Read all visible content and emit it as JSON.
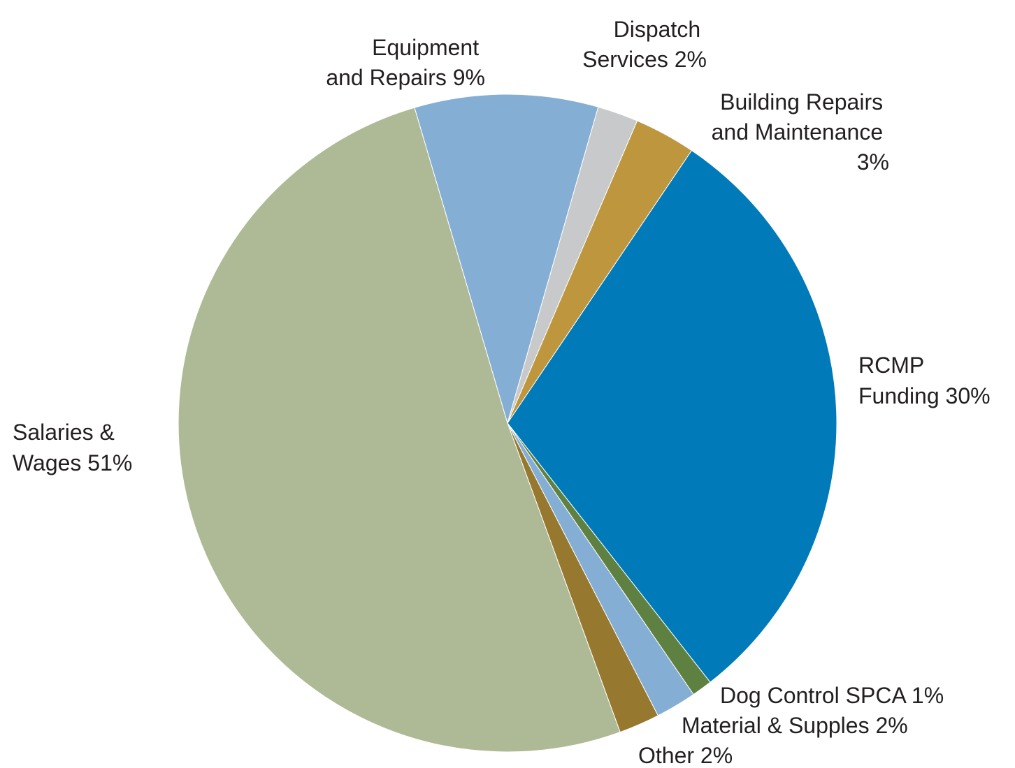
{
  "chart_data": {
    "type": "pie",
    "title": "",
    "slices": [
      {
        "name": "RCMP Funding",
        "value": 30,
        "color": "#007ab8",
        "label_lines": [
          "RCMP",
          "Funding 30%"
        ]
      },
      {
        "name": "Dog Control SPCA",
        "value": 1,
        "color": "#5e8040",
        "label_lines": [
          "Dog Control SPCA 1%"
        ]
      },
      {
        "name": "Material & Supples",
        "value": 2,
        "color": "#84aed4",
        "label_lines": [
          "Material & Supples 2%"
        ]
      },
      {
        "name": "Other",
        "value": 2,
        "color": "#96782e",
        "label_lines": [
          "Other 2%"
        ]
      },
      {
        "name": "Salaries & Wages",
        "value": 51,
        "color": "#adba95",
        "label_lines": [
          "Salaries &",
          "Wages 51%"
        ]
      },
      {
        "name": "Equipment and Repairs",
        "value": 9,
        "color": "#84aed4",
        "label_lines": [
          "Equipment",
          "and Repairs 9%"
        ]
      },
      {
        "name": "Dispatch Services",
        "value": 2,
        "color": "#c8c9cb",
        "label_lines": [
          "Dispatch",
          "Services 2%"
        ]
      },
      {
        "name": "Building Repairs and Maintenance",
        "value": 3,
        "color": "#bd963d",
        "label_lines": [
          "Building Repairs",
          "and Maintenance",
          "3%"
        ]
      }
    ]
  }
}
